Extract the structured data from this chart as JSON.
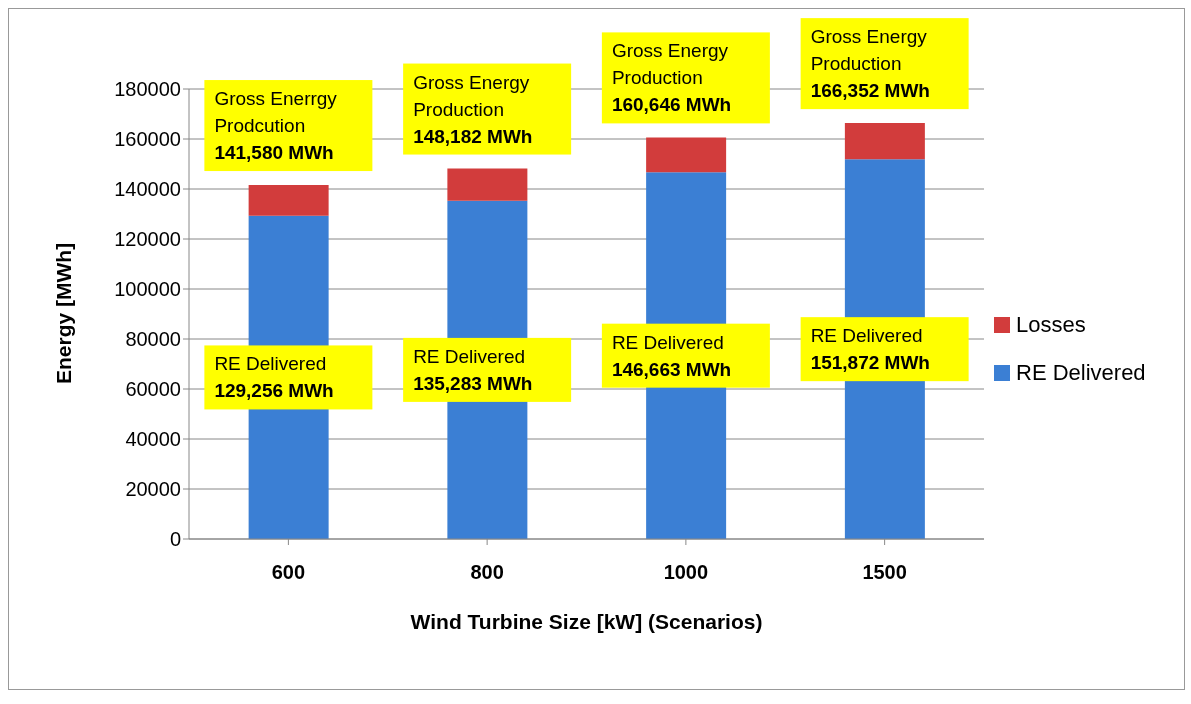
{
  "chart_data": {
    "type": "bar",
    "stacked": true,
    "xlabel": "Wind Turbine Size [kW] (Scenarios)",
    "ylabel": "Energy [MWh]",
    "categories": [
      "600",
      "800",
      "1000",
      "1500"
    ],
    "series": [
      {
        "name": "RE Delivered",
        "color": "#3b7fd4",
        "values": [
          129256,
          135283,
          146663,
          151872
        ]
      },
      {
        "name": "Losses",
        "color": "#d23c3c",
        "values": [
          12324,
          12899,
          13983,
          14480
        ]
      }
    ],
    "ylim": [
      0,
      180000
    ],
    "yticks": [
      0,
      20000,
      40000,
      60000,
      80000,
      100000,
      120000,
      140000,
      160000,
      180000
    ],
    "grid": "y",
    "legend": "right",
    "annotations": [
      {
        "text": "Gross Enerrgy\nProdcution\n141,580 MWh",
        "x": "600",
        "y": 141580
      },
      {
        "text": "Gross Energy\nProduction\n148,182 MWh",
        "x": "800",
        "y": 148182
      },
      {
        "text": "Gross Energy\nProduction\n160,646 MWh",
        "x": "1000",
        "y": 160646
      },
      {
        "text": "Gross Energy\nProduction\n166,352 MWh",
        "x": "1500",
        "y": 166352
      },
      "RE Delivered\n129,256 MWh",
      "RE Delivered\n135,283 MWh",
      "RE Delivered\n146,663 MWh",
      "RE Delivered\n151,872 MWh"
    ]
  }
}
